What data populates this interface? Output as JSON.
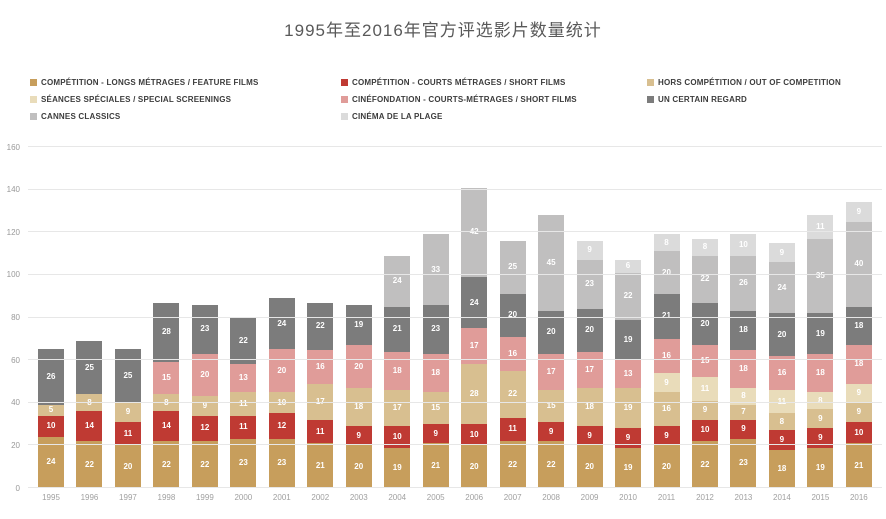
{
  "title": "1995年至2016年官方评选影片数量统计",
  "chart_data": {
    "type": "bar",
    "stacked": true,
    "title": "1995年至2016年官方评选影片数量统计",
    "xlabel": "",
    "ylabel": "",
    "ylim": [
      0,
      160
    ],
    "yticks": [
      0,
      20,
      40,
      60,
      80,
      100,
      120,
      140,
      160
    ],
    "grid": true,
    "legend_position": "top",
    "value_labels": "white number centered in every non-zero segment",
    "categories": [
      "1995",
      "1996",
      "1997",
      "1998",
      "1999",
      "2000",
      "2001",
      "2002",
      "2003",
      "2004",
      "2005",
      "2006",
      "2007",
      "2008",
      "2009",
      "2010",
      "2011",
      "2012",
      "2013",
      "2014",
      "2015",
      "2016"
    ],
    "series": [
      {
        "name": "COMPÉTITION - LONGS MÉTRAGES / FEATURE FILMS",
        "color": "#c79e5c",
        "values": [
          24,
          22,
          20,
          22,
          22,
          23,
          23,
          21,
          20,
          19,
          21,
          20,
          22,
          22,
          20,
          19,
          20,
          22,
          23,
          18,
          19,
          21
        ]
      },
      {
        "name": "COMPÉTITION - COURTS MÉTRAGES / SHORT FILMS",
        "color": "#bf3a33",
        "values": [
          10,
          14,
          11,
          14,
          12,
          11,
          12,
          11,
          9,
          10,
          9,
          10,
          11,
          9,
          9,
          9,
          9,
          10,
          9,
          9,
          9,
          10
        ]
      },
      {
        "name": "HORS COMPÉTITION / OUT OF COMPETITION",
        "color": "#d8bf90",
        "values": [
          5,
          8,
          9,
          8,
          9,
          11,
          10,
          17,
          18,
          17,
          15,
          28,
          22,
          15,
          18,
          19,
          16,
          9,
          7,
          8,
          9,
          9
        ]
      },
      {
        "name": "SÉANCES SPÉCIALES / SPECIAL SCREENINGS",
        "color": "#e9dcba",
        "values": [
          0,
          0,
          0,
          0,
          0,
          0,
          0,
          0,
          0,
          0,
          0,
          0,
          0,
          0,
          0,
          0,
          9,
          11,
          8,
          11,
          8,
          9
        ]
      },
      {
        "name": "CINÉFONDATION - COURTS-MÉTRAGES / SHORT FILMS",
        "color": "#e09c99",
        "values": [
          0,
          0,
          0,
          15,
          20,
          13,
          20,
          16,
          20,
          18,
          18,
          17,
          16,
          17,
          17,
          13,
          16,
          15,
          18,
          16,
          18,
          18
        ]
      },
      {
        "name": "UN CERTAIN REGARD",
        "color": "#7c7c7c",
        "values": [
          26,
          25,
          25,
          28,
          23,
          22,
          24,
          22,
          19,
          21,
          23,
          24,
          20,
          20,
          20,
          19,
          21,
          20,
          18,
          20,
          19,
          18
        ]
      },
      {
        "name": "CANNES CLASSICS",
        "color": "#c0bfbf",
        "values": [
          0,
          0,
          0,
          0,
          0,
          0,
          0,
          0,
          0,
          24,
          33,
          42,
          25,
          45,
          23,
          22,
          20,
          22,
          26,
          24,
          35,
          40
        ]
      },
      {
        "name": "CINÉMA DE LA PLAGE",
        "color": "#dbdbdb",
        "values": [
          0,
          0,
          0,
          0,
          0,
          0,
          0,
          0,
          0,
          0,
          0,
          0,
          0,
          0,
          9,
          6,
          8,
          8,
          10,
          9,
          11,
          9
        ]
      }
    ],
    "totals": [
      65,
      69,
      65,
      87,
      86,
      80,
      89,
      87,
      86,
      109,
      119,
      141,
      116,
      128,
      116,
      107,
      119,
      117,
      119,
      115,
      128,
      134
    ]
  }
}
